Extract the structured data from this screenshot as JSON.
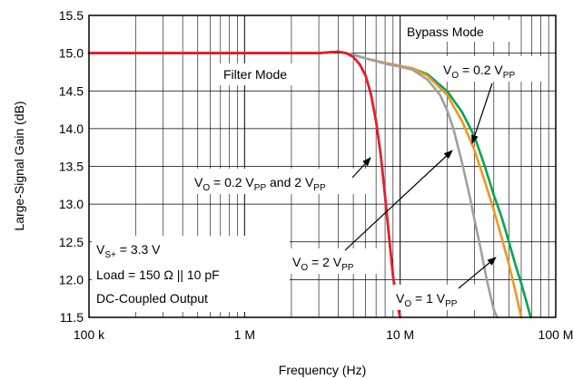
{
  "chart_data": {
    "type": "line",
    "title": "",
    "xlabel": "Frequency (Hz)",
    "ylabel": "Large-Signal Gain (dB)",
    "xscale": "log",
    "xlim": [
      100000,
      100000000
    ],
    "ylim": [
      11.5,
      15.5
    ],
    "grid": true,
    "x_ticks": [
      {
        "value": 100000,
        "label": "100 k"
      },
      {
        "value": 1000000,
        "label": "1 M"
      },
      {
        "value": 10000000,
        "label": "10 M"
      },
      {
        "value": 100000000,
        "label": "100 M"
      }
    ],
    "y_ticks": [
      {
        "value": 15.5,
        "label": "15.5"
      },
      {
        "value": 15.0,
        "label": "15.0"
      },
      {
        "value": 14.5,
        "label": "14.5"
      },
      {
        "value": 14.0,
        "label": "14.0"
      },
      {
        "value": 13.5,
        "label": "13.5"
      },
      {
        "value": 13.0,
        "label": "13.0"
      },
      {
        "value": 12.5,
        "label": "12.5"
      },
      {
        "value": 12.0,
        "label": "12.0"
      },
      {
        "value": 11.5,
        "label": "11.5"
      }
    ],
    "series": [
      {
        "color": "#00a651",
        "x": [
          100000,
          300000,
          1000000,
          3000000,
          4000000,
          5000000,
          6000000,
          8000000,
          10000000,
          12000000,
          15000000,
          20000000,
          25000000,
          30000000,
          35000000,
          40000000,
          45000000,
          50000000,
          55000000,
          60000000,
          65000000,
          69000000
        ],
        "y": [
          15.0,
          15.0,
          15.0,
          15.0,
          15.02,
          14.98,
          14.93,
          14.87,
          14.83,
          14.8,
          14.72,
          14.5,
          14.22,
          13.9,
          13.5,
          13.12,
          12.82,
          12.5,
          12.2,
          11.95,
          11.7,
          11.5
        ]
      },
      {
        "color": "#f7941d",
        "x": [
          100000,
          300000,
          1000000,
          3000000,
          4000000,
          5000000,
          6000000,
          8000000,
          10000000,
          12000000,
          15000000,
          20000000,
          25000000,
          30000000,
          35000000,
          40000000,
          45000000,
          50000000,
          55000000,
          60000000
        ],
        "y": [
          15.0,
          15.0,
          15.0,
          15.0,
          15.02,
          14.98,
          14.93,
          14.87,
          14.83,
          14.8,
          14.7,
          14.45,
          14.1,
          13.72,
          13.3,
          12.92,
          12.55,
          12.2,
          11.85,
          11.5
        ]
      },
      {
        "color": "#a0a0a0",
        "x": [
          100000,
          300000,
          1000000,
          3000000,
          4000000,
          5000000,
          6000000,
          8000000,
          10000000,
          12000000,
          15000000,
          18000000,
          20000000,
          22000000,
          25000000,
          28000000,
          30000000,
          33000000,
          36000000,
          40000000,
          42000000
        ],
        "y": [
          15.0,
          15.0,
          15.0,
          15.0,
          15.02,
          14.98,
          14.93,
          14.86,
          14.82,
          14.78,
          14.65,
          14.45,
          14.25,
          14.0,
          13.55,
          13.1,
          12.8,
          12.4,
          12.0,
          11.6,
          11.5
        ]
      },
      {
        "color": "#2e3192",
        "x": [
          100000,
          300000,
          1000000,
          2000000,
          3000000,
          4000000,
          4500000,
          5000000,
          5500000,
          6000000,
          6500000,
          7000000,
          7500000,
          8000000,
          8500000,
          9000000,
          9500000,
          10000000
        ],
        "y": [
          15.0,
          15.0,
          15.0,
          15.0,
          15.0,
          15.02,
          15.0,
          14.95,
          14.85,
          14.7,
          14.45,
          14.1,
          13.65,
          13.1,
          12.55,
          12.05,
          11.7,
          11.5
        ]
      },
      {
        "color": "#ed1c24",
        "x": [
          100000,
          300000,
          1000000,
          2000000,
          3000000,
          4000000,
          4500000,
          5000000,
          5500000,
          6000000,
          6500000,
          7000000,
          7500000,
          8000000,
          8500000,
          9000000,
          9500000,
          10000000
        ],
        "y": [
          15.0,
          15.0,
          15.0,
          15.0,
          15.0,
          15.02,
          15.0,
          14.95,
          14.85,
          14.7,
          14.45,
          14.1,
          13.65,
          13.1,
          12.55,
          12.05,
          11.7,
          11.5
        ]
      }
    ],
    "annotations": {
      "bypass_mode": "Bypass Mode",
      "filter_mode": "Filter Mode",
      "vo_02": {
        "a": "V",
        "b": "O",
        "c": " = 0.2 V",
        "d": "PP"
      },
      "vo_02_2": {
        "a": "V",
        "b": "O",
        "c": " = 0.2 V",
        "d": "PP",
        "e": " and 2 V",
        "f": "PP"
      },
      "vo_2": {
        "a": "V",
        "b": "O",
        "c": " = 2 V",
        "d": "PP"
      },
      "vo_1": {
        "a": "V",
        "b": "O",
        "c": " = 1 V",
        "d": "PP"
      },
      "conditions": {
        "supply_a": "V",
        "supply_b": "S+",
        "supply_c": " = 3.3 V",
        "load": "Load = 150 Ω || 10 pF",
        "coupling": "DC-Coupled Output"
      }
    }
  }
}
